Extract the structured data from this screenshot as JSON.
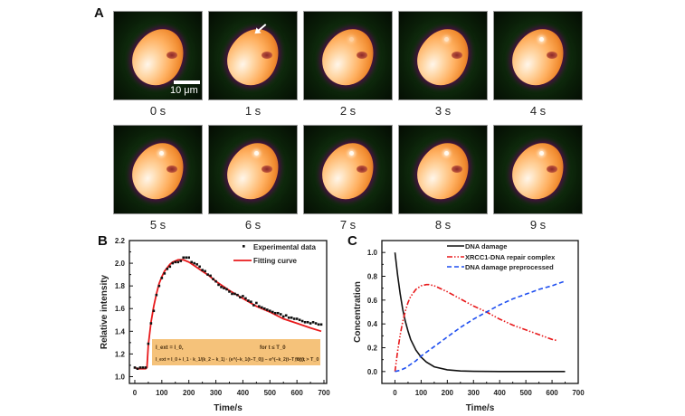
{
  "panel_a": {
    "letter": "A",
    "frames": [
      "0 s",
      "1 s",
      "2 s",
      "3 s",
      "4 s",
      "5 s",
      "6 s",
      "7 s",
      "8 s",
      "9 s"
    ],
    "scale_bar_label": "10 μm",
    "colors": {
      "background": "#0a1f08",
      "cell_core": "#ffb060",
      "cell_rim": "#7a1a5a"
    }
  },
  "chart_data": [
    {
      "id": "B",
      "type": "scatter",
      "letter": "B",
      "title": "",
      "xlabel": "Time/s",
      "ylabel": "Relative intensity",
      "xlim": [
        -20,
        710
      ],
      "ylim": [
        0.94,
        2.2
      ],
      "xticks": [
        0,
        100,
        200,
        300,
        400,
        500,
        600,
        700
      ],
      "yticks": [
        1.0,
        1.2,
        1.4,
        1.6,
        1.8,
        2.0,
        2.2
      ],
      "ytick_labels": [
        "1.0",
        "1.2",
        "1.4",
        "1.6",
        "1.8",
        "2.0",
        "2.2"
      ],
      "grid": false,
      "legend_position": "top-right",
      "series": [
        {
          "name": "Experimental data",
          "kind": "points",
          "color": "#111111",
          "x": [
            0,
            10,
            20,
            30,
            40,
            50,
            60,
            70,
            80,
            90,
            100,
            110,
            120,
            130,
            140,
            150,
            160,
            170,
            180,
            190,
            200,
            210,
            220,
            230,
            240,
            250,
            260,
            270,
            280,
            290,
            300,
            310,
            320,
            330,
            340,
            350,
            360,
            370,
            380,
            390,
            400,
            410,
            420,
            430,
            440,
            450,
            460,
            470,
            480,
            490,
            500,
            510,
            520,
            530,
            540,
            550,
            560,
            570,
            580,
            590,
            600,
            610,
            620,
            630,
            640,
            650,
            660,
            670,
            680,
            690
          ],
          "y": [
            1.08,
            1.07,
            1.08,
            1.08,
            1.08,
            1.29,
            1.47,
            1.58,
            1.72,
            1.8,
            1.87,
            1.91,
            1.95,
            1.97,
            2.0,
            2.01,
            2.01,
            2.02,
            2.05,
            2.05,
            2.05,
            2.01,
            2.0,
            1.99,
            1.97,
            1.94,
            1.93,
            1.9,
            1.89,
            1.86,
            1.84,
            1.81,
            1.79,
            1.78,
            1.77,
            1.75,
            1.73,
            1.73,
            1.72,
            1.7,
            1.71,
            1.69,
            1.67,
            1.66,
            1.63,
            1.65,
            1.62,
            1.61,
            1.6,
            1.59,
            1.58,
            1.57,
            1.56,
            1.56,
            1.55,
            1.53,
            1.54,
            1.52,
            1.52,
            1.51,
            1.51,
            1.5,
            1.49,
            1.48,
            1.48,
            1.47,
            1.48,
            1.47,
            1.46,
            1.46
          ]
        },
        {
          "name": "Fitting curve",
          "kind": "line",
          "color": "#e8191b",
          "x": [
            0,
            10,
            20,
            30,
            40,
            45,
            50,
            60,
            70,
            80,
            90,
            100,
            110,
            120,
            130,
            140,
            150,
            160,
            170,
            180,
            200,
            225,
            250,
            275,
            300,
            350,
            400,
            450,
            500,
            550,
            600,
            650,
            690
          ],
          "y": [
            1.08,
            1.07,
            1.07,
            1.07,
            1.07,
            1.08,
            1.28,
            1.48,
            1.62,
            1.73,
            1.82,
            1.88,
            1.93,
            1.96,
            1.99,
            2.01,
            2.02,
            2.03,
            2.03,
            2.03,
            2.01,
            1.97,
            1.93,
            1.89,
            1.84,
            1.76,
            1.69,
            1.62,
            1.57,
            1.51,
            1.47,
            1.43,
            1.4
          ]
        }
      ],
      "equation_box": {
        "line1_lhs": "I_ext = I_0,",
        "line1_cond": "for t ≤ T_0",
        "line2_lhs": "I_ext = I_0 + I_1 · k_1/(k_2 − k_1) · (e^(−k_1(t−T_0)) − e^(−k_2(t−T_0))),",
        "line2_cond": "for t > T_0",
        "color": "#f5c27a"
      }
    },
    {
      "id": "C",
      "type": "line",
      "letter": "C",
      "title": "",
      "xlabel": "Time/s",
      "ylabel": "Concentration",
      "xlim": [
        -50,
        700
      ],
      "ylim": [
        -0.1,
        1.1
      ],
      "xticks": [
        0,
        100,
        200,
        300,
        400,
        500,
        600,
        700
      ],
      "yticks": [
        0.0,
        0.2,
        0.4,
        0.6,
        0.8,
        1.0
      ],
      "ytick_labels": [
        "0.0",
        "0.2",
        "0.4",
        "0.6",
        "0.8",
        "1.0"
      ],
      "grid": false,
      "legend_position": "top-right",
      "series": [
        {
          "name": "DNA damage",
          "style": "solid",
          "color": "#111111",
          "x": [
            0,
            10,
            20,
            30,
            40,
            50,
            60,
            80,
            100,
            120,
            150,
            200,
            250,
            300,
            400,
            500,
            650
          ],
          "y": [
            1.0,
            0.81,
            0.65,
            0.52,
            0.42,
            0.34,
            0.27,
            0.18,
            0.12,
            0.08,
            0.04,
            0.015,
            0.005,
            0.002,
            0.0,
            0.0,
            0.0
          ]
        },
        {
          "name": "XRCC1-DNA repair complex",
          "style": "dash-dot-dot",
          "color": "#e8191b",
          "x": [
            0,
            10,
            20,
            30,
            40,
            50,
            60,
            80,
            100,
            120,
            130,
            150,
            200,
            250,
            300,
            350,
            400,
            450,
            500,
            550,
            600,
            620
          ],
          "y": [
            0.0,
            0.17,
            0.31,
            0.42,
            0.51,
            0.58,
            0.63,
            0.69,
            0.72,
            0.73,
            0.73,
            0.72,
            0.67,
            0.61,
            0.55,
            0.5,
            0.44,
            0.39,
            0.35,
            0.31,
            0.27,
            0.26
          ]
        },
        {
          "name": "DNA damage preprocessed",
          "style": "dashed",
          "color": "#1f4ff0",
          "x": [
            0,
            20,
            40,
            60,
            80,
            100,
            150,
            200,
            250,
            300,
            350,
            400,
            450,
            500,
            550,
            600,
            650
          ],
          "y": [
            0.0,
            0.01,
            0.03,
            0.06,
            0.09,
            0.13,
            0.21,
            0.29,
            0.37,
            0.44,
            0.5,
            0.56,
            0.61,
            0.65,
            0.69,
            0.72,
            0.76
          ]
        }
      ]
    }
  ]
}
